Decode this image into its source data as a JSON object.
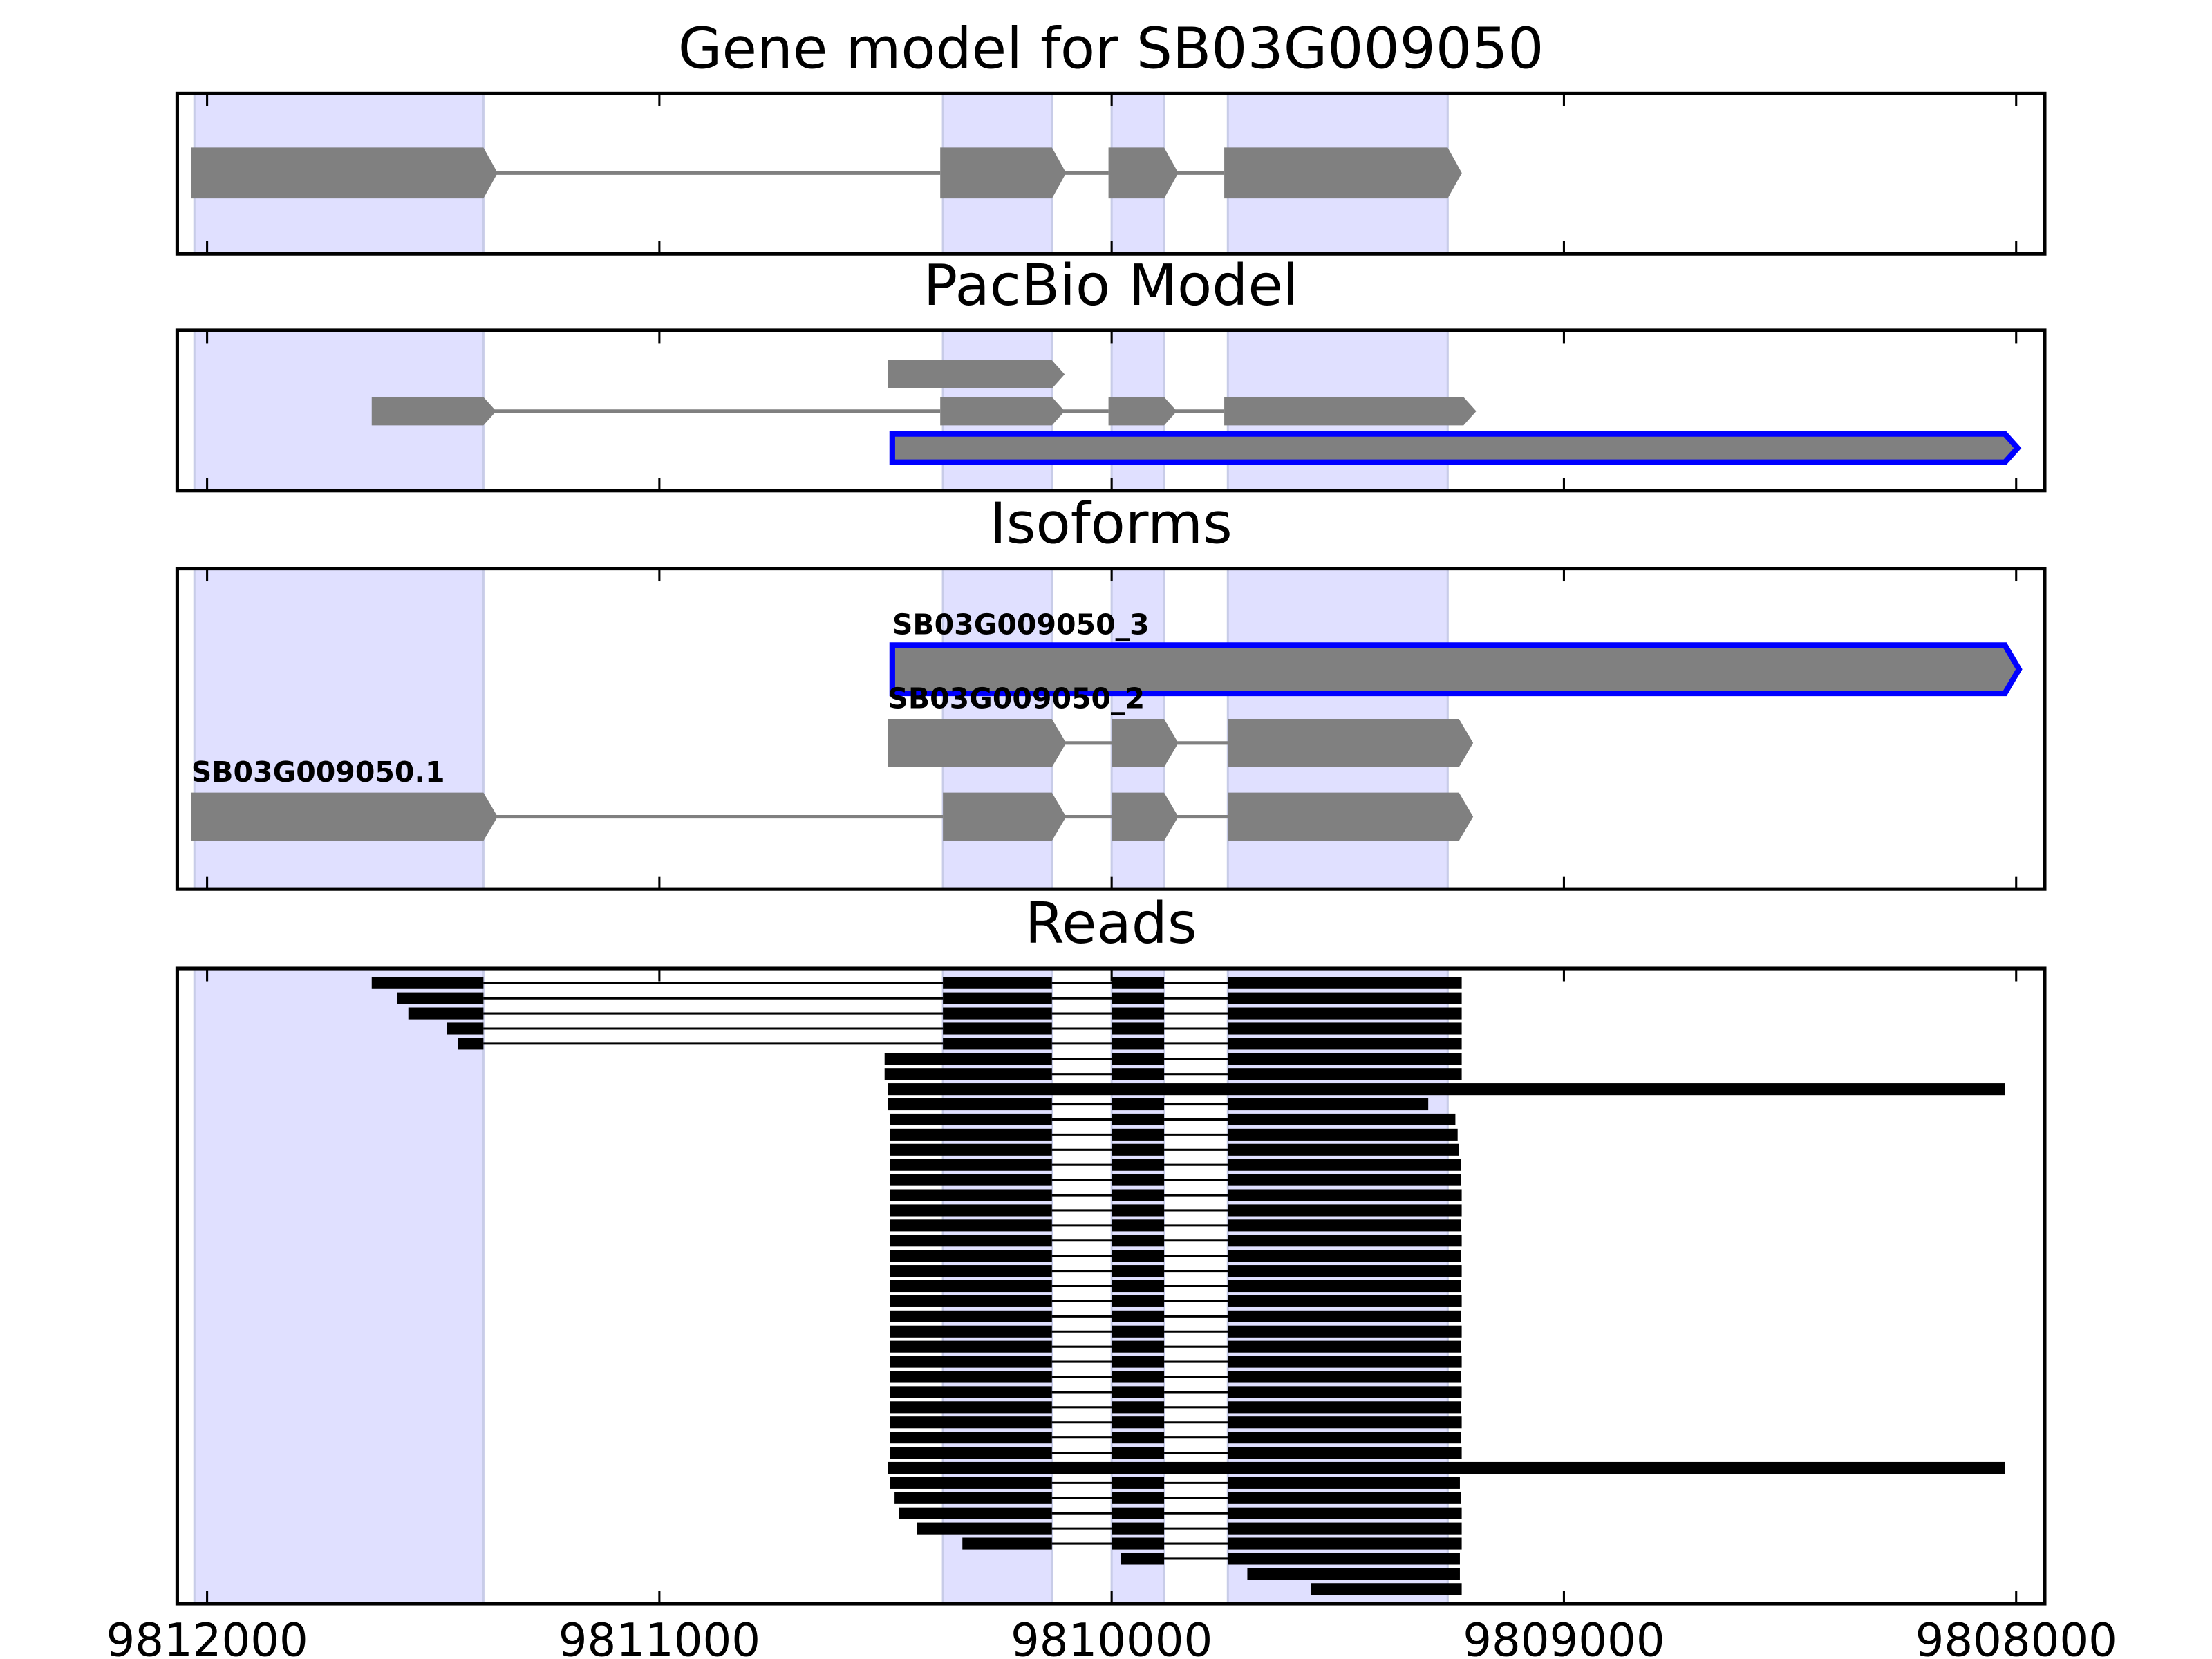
{
  "chart_data": [
    {
      "type": "track",
      "title": "Gene model for SB03G009050",
      "xlim": [
        9812066,
        9807937
      ],
      "xticks": [
        9812000,
        9811000,
        9810000,
        9809000,
        9808000
      ],
      "highlights": [
        [
          9812028,
          9811389
        ],
        [
          9810373,
          9810132
        ],
        [
          9810000,
          9809884
        ],
        [
          9809743,
          9809257
        ]
      ],
      "highlight_color": "#e0e0ff",
      "transcripts": [
        {
          "exons": [
            [
              9812035,
              9811389
            ],
            [
              9810379,
              9810132
            ],
            [
              9810007,
              9809884
            ],
            [
              9809751,
              9809257
            ]
          ],
          "color": "#808080"
        }
      ]
    },
    {
      "type": "track",
      "title": "PacBio Model",
      "xlim": [
        9812066,
        9807937
      ],
      "xticks": [
        9812000,
        9811000,
        9810000,
        9809000,
        9808000
      ],
      "highlights": [
        [
          9812028,
          9811389
        ],
        [
          9810373,
          9810132
        ],
        [
          9810000,
          9809884
        ],
        [
          9809743,
          9809257
        ]
      ],
      "highlight_color": "#e0e0ff",
      "transcripts": [
        {
          "exons": [
            [
              9810495,
              9810132
            ]
          ],
          "color": "#808080"
        },
        {
          "exons": [
            [
              9811636,
              9811389
            ],
            [
              9810379,
              9810132
            ],
            [
              9810007,
              9809884
            ],
            [
              9809751,
              9809222
            ]
          ],
          "color": "#808080"
        },
        {
          "exons": [
            [
              9810485,
              9808025
            ]
          ],
          "color": "#808080",
          "edge_color": "#0000ff"
        }
      ]
    },
    {
      "type": "track",
      "title": "Isoforms",
      "xlim": [
        9812066,
        9807937
      ],
      "xticks": [
        9812000,
        9811000,
        9810000,
        9809000,
        9808000
      ],
      "highlights": [
        [
          9812028,
          9811389
        ],
        [
          9810373,
          9810132
        ],
        [
          9810000,
          9809884
        ],
        [
          9809743,
          9809257
        ]
      ],
      "highlight_color": "#e0e0ff",
      "transcripts": [
        {
          "label": "SB03G009050_3",
          "exons": [
            [
              9810485,
              9808025
            ]
          ],
          "color": "#808080",
          "edge_color": "#0000ff"
        },
        {
          "label": "SB03G009050_2",
          "exons": [
            [
              9810495,
              9810132
            ],
            [
              9810000,
              9809884
            ],
            [
              9809743,
              9809232
            ]
          ],
          "color": "#808080"
        },
        {
          "label": "SB03G009050.1",
          "exons": [
            [
              9812035,
              9811389
            ],
            [
              9810373,
              9810132
            ],
            [
              9810000,
              9809884
            ],
            [
              9809743,
              9809232
            ]
          ],
          "color": "#808080"
        }
      ]
    },
    {
      "type": "reads",
      "title": "Reads",
      "xlim": [
        9812066,
        9807937
      ],
      "xticks": [
        9812000,
        9811000,
        9810000,
        9809000,
        9808000
      ],
      "highlights": [
        [
          9812028,
          9811389
        ],
        [
          9810373,
          9810132
        ],
        [
          9810000,
          9809884
        ],
        [
          9809743,
          9809257
        ]
      ],
      "highlight_color": "#e0e0ff",
      "color": "#000000",
      "reads": [
        [
          [
            9811636,
            9811389
          ],
          [
            9810373,
            9810132
          ],
          [
            9810000,
            9809884
          ],
          [
            9809743,
            9809226
          ]
        ],
        [
          [
            9811580,
            9811389
          ],
          [
            9810373,
            9810132
          ],
          [
            9810000,
            9809884
          ],
          [
            9809743,
            9809226
          ]
        ],
        [
          [
            9811555,
            9811389
          ],
          [
            9810373,
            9810132
          ],
          [
            9810000,
            9809884
          ],
          [
            9809743,
            9809226
          ]
        ],
        [
          [
            9811470,
            9811389
          ],
          [
            9810373,
            9810132
          ],
          [
            9810000,
            9809884
          ],
          [
            9809743,
            9809226
          ]
        ],
        [
          [
            9811445,
            9811389
          ],
          [
            9810373,
            9810132
          ],
          [
            9810000,
            9809884
          ],
          [
            9809743,
            9809226
          ]
        ],
        [
          [
            9810502,
            9810132
          ],
          [
            9810000,
            9809884
          ],
          [
            9809743,
            9809226
          ]
        ],
        [
          [
            9810502,
            9810132
          ],
          [
            9810000,
            9809884
          ],
          [
            9809743,
            9809226
          ]
        ],
        [
          [
            9810495,
            9808025
          ]
        ],
        [
          [
            9810495,
            9810132
          ],
          [
            9810000,
            9809884
          ],
          [
            9809743,
            9809300
          ]
        ],
        [
          [
            9810490,
            9810132
          ],
          [
            9810000,
            9809884
          ],
          [
            9809743,
            9809240
          ]
        ],
        [
          [
            9810490,
            9810132
          ],
          [
            9810000,
            9809884
          ],
          [
            9809743,
            9809235
          ]
        ],
        [
          [
            9810490,
            9810132
          ],
          [
            9810000,
            9809884
          ],
          [
            9809743,
            9809232
          ]
        ],
        [
          [
            9810490,
            9810132
          ],
          [
            9810000,
            9809884
          ],
          [
            9809743,
            9809228
          ]
        ],
        [
          [
            9810490,
            9810132
          ],
          [
            9810000,
            9809884
          ],
          [
            9809743,
            9809228
          ]
        ],
        [
          [
            9810490,
            9810132
          ],
          [
            9810000,
            9809884
          ],
          [
            9809743,
            9809226
          ]
        ],
        [
          [
            9810490,
            9810132
          ],
          [
            9810000,
            9809884
          ],
          [
            9809743,
            9809226
          ]
        ],
        [
          [
            9810490,
            9810132
          ],
          [
            9810000,
            9809884
          ],
          [
            9809743,
            9809228
          ]
        ],
        [
          [
            9810490,
            9810132
          ],
          [
            9810000,
            9809884
          ],
          [
            9809743,
            9809226
          ]
        ],
        [
          [
            9810490,
            9810132
          ],
          [
            9810000,
            9809884
          ],
          [
            9809743,
            9809228
          ]
        ],
        [
          [
            9810490,
            9810132
          ],
          [
            9810000,
            9809884
          ],
          [
            9809743,
            9809226
          ]
        ],
        [
          [
            9810490,
            9810132
          ],
          [
            9810000,
            9809884
          ],
          [
            9809743,
            9809228
          ]
        ],
        [
          [
            9810490,
            9810132
          ],
          [
            9810000,
            9809884
          ],
          [
            9809743,
            9809226
          ]
        ],
        [
          [
            9810490,
            9810132
          ],
          [
            9810000,
            9809884
          ],
          [
            9809743,
            9809228
          ]
        ],
        [
          [
            9810490,
            9810132
          ],
          [
            9810000,
            9809884
          ],
          [
            9809743,
            9809226
          ]
        ],
        [
          [
            9810490,
            9810132
          ],
          [
            9810000,
            9809884
          ],
          [
            9809743,
            9809228
          ]
        ],
        [
          [
            9810490,
            9810132
          ],
          [
            9810000,
            9809884
          ],
          [
            9809743,
            9809226
          ]
        ],
        [
          [
            9810490,
            9810132
          ],
          [
            9810000,
            9809884
          ],
          [
            9809743,
            9809228
          ]
        ],
        [
          [
            9810490,
            9810132
          ],
          [
            9810000,
            9809884
          ],
          [
            9809743,
            9809226
          ]
        ],
        [
          [
            9810490,
            9810132
          ],
          [
            9810000,
            9809884
          ],
          [
            9809743,
            9809228
          ]
        ],
        [
          [
            9810490,
            9810132
          ],
          [
            9810000,
            9809884
          ],
          [
            9809743,
            9809226
          ]
        ],
        [
          [
            9810490,
            9810132
          ],
          [
            9810000,
            9809884
          ],
          [
            9809743,
            9809228
          ]
        ],
        [
          [
            9810490,
            9810132
          ],
          [
            9810000,
            9809884
          ],
          [
            9809743,
            9809226
          ]
        ],
        [
          [
            9810495,
            9808025
          ]
        ],
        [
          [
            9810490,
            9810132
          ],
          [
            9810000,
            9809884
          ],
          [
            9809743,
            9809230
          ]
        ],
        [
          [
            9810480,
            9810132
          ],
          [
            9810000,
            9809884
          ],
          [
            9809743,
            9809228
          ]
        ],
        [
          [
            9810470,
            9810132
          ],
          [
            9810000,
            9809884
          ],
          [
            9809743,
            9809226
          ]
        ],
        [
          [
            9810430,
            9810132
          ],
          [
            9810000,
            9809884
          ],
          [
            9809743,
            9809226
          ]
        ],
        [
          [
            9810330,
            9810132
          ],
          [
            9810000,
            9809884
          ],
          [
            9809743,
            9809226
          ]
        ],
        [
          [
            9809980,
            9809884
          ],
          [
            9809743,
            9809230
          ]
        ],
        [
          [
            9809700,
            9809230
          ]
        ],
        [
          [
            9809560,
            9809226
          ]
        ]
      ]
    }
  ]
}
